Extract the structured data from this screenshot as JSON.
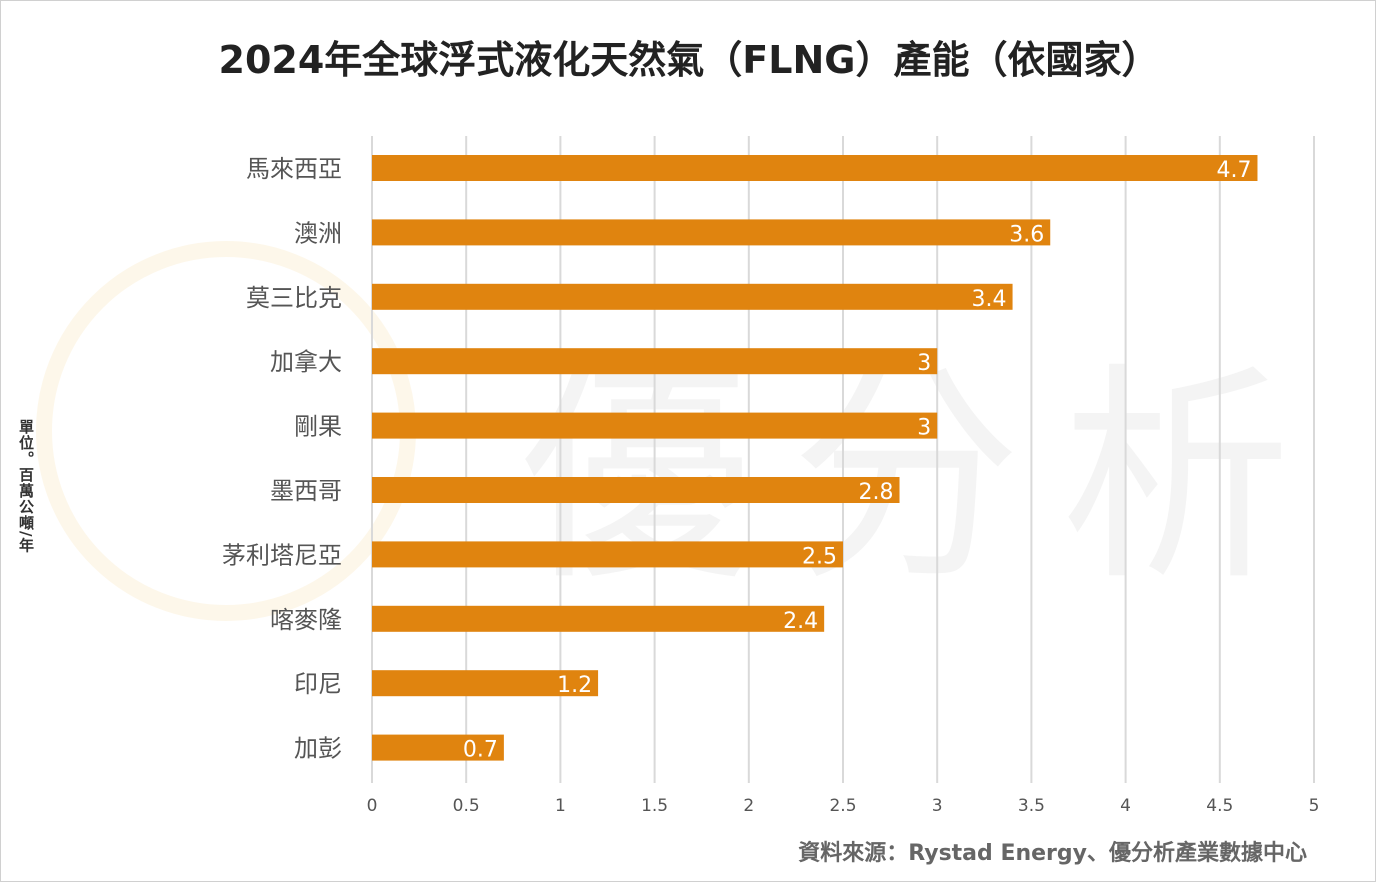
{
  "chart_data": {
    "type": "bar",
    "orientation": "horizontal",
    "title": "2024年全球浮式液化天然氣（FLNG）產能（依國家）",
    "ylabel": "單位。百萬公噸/年",
    "xlabel": "",
    "categories": [
      "馬來西亞",
      "澳洲",
      "莫三比克",
      "加拿大",
      "剛果",
      "墨西哥",
      "茅利塔尼亞",
      "喀麥隆",
      "印尼",
      "加彭"
    ],
    "values": [
      4.7,
      3.6,
      3.4,
      3,
      3,
      2.8,
      2.5,
      2.4,
      1.2,
      0.7
    ],
    "xlim": [
      0,
      5
    ],
    "xticks": [
      "0",
      "0.5",
      "1",
      "1.5",
      "2",
      "2.5",
      "3",
      "3.5",
      "4",
      "4.5",
      "5"
    ],
    "grid": true,
    "bar_color": "#E0840F",
    "source": "資料來源：Rystad Energy、優分析產業數據中心"
  },
  "watermark": "優分析"
}
